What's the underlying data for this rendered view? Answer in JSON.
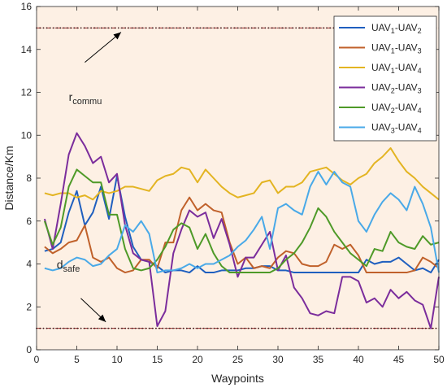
{
  "chart_data": {
    "type": "line",
    "xlabel": "Waypoints",
    "ylabel": "Distance/Km",
    "xlim": [
      0,
      50
    ],
    "ylim": [
      0,
      16
    ],
    "xticks": [
      0,
      5,
      10,
      15,
      20,
      25,
      30,
      35,
      40,
      45,
      50
    ],
    "yticks": [
      0,
      2,
      4,
      6,
      8,
      10,
      12,
      14,
      16
    ],
    "grid": false,
    "legend_position": "top-right",
    "background": "#fdf0e4",
    "x": [
      1,
      2,
      3,
      4,
      5,
      6,
      7,
      8,
      9,
      10,
      11,
      12,
      13,
      14,
      15,
      16,
      17,
      18,
      19,
      20,
      21,
      22,
      23,
      24,
      25,
      26,
      27,
      28,
      29,
      30,
      31,
      32,
      33,
      34,
      35,
      36,
      37,
      38,
      39,
      40,
      41,
      42,
      43,
      44,
      45,
      46,
      47,
      48,
      49,
      50
    ],
    "series": [
      {
        "base": "UAV",
        "a": "1",
        "b": "2",
        "color": "#1f5fbf",
        "values": [
          4.6,
          4.7,
          5.0,
          6.4,
          7.4,
          5.8,
          6.4,
          7.6,
          6.1,
          8.1,
          6.2,
          4.8,
          4.2,
          4.1,
          3.9,
          3.6,
          3.7,
          3.7,
          3.6,
          3.9,
          3.6,
          3.6,
          3.7,
          3.7,
          3.7,
          3.8,
          3.8,
          3.9,
          3.9,
          3.7,
          3.7,
          3.6,
          3.6,
          3.6,
          3.6,
          3.6,
          3.6,
          3.6,
          3.6,
          3.6,
          4.2,
          4.0,
          4.1,
          4.1,
          4.3,
          4.0,
          3.7,
          3.8,
          3.6,
          4.2
        ]
      },
      {
        "base": "UAV",
        "a": "1",
        "b": "3",
        "color": "#c0612b",
        "values": [
          4.8,
          4.5,
          4.7,
          5.0,
          5.1,
          5.8,
          4.3,
          4.1,
          4.3,
          3.8,
          3.6,
          3.7,
          4.2,
          4.2,
          3.8,
          5.0,
          5.0,
          6.5,
          7.1,
          6.5,
          6.8,
          6.5,
          6.4,
          5.0,
          4.0,
          4.3,
          3.8,
          3.9,
          3.8,
          4.3,
          4.6,
          4.5,
          4.0,
          3.9,
          3.9,
          4.1,
          4.9,
          4.7,
          4.9,
          4.4,
          3.6,
          3.6,
          3.6,
          3.6,
          3.6,
          3.6,
          3.7,
          4.3,
          4.1,
          3.8
        ]
      },
      {
        "base": "UAV",
        "a": "1",
        "b": "4",
        "color": "#e3b422",
        "values": [
          7.3,
          7.2,
          7.3,
          7.3,
          7.1,
          7.2,
          7.0,
          7.4,
          7.3,
          7.4,
          7.6,
          7.6,
          7.5,
          7.4,
          7.9,
          8.1,
          8.2,
          8.5,
          8.4,
          7.8,
          8.4,
          8.0,
          7.6,
          7.3,
          7.1,
          7.2,
          7.3,
          7.8,
          7.9,
          7.3,
          7.6,
          7.6,
          7.8,
          8.3,
          8.4,
          8.5,
          8.2,
          7.9,
          7.7,
          8.0,
          8.2,
          8.7,
          9.0,
          9.4,
          8.8,
          8.3,
          8.0,
          7.6,
          7.3,
          7.0
        ]
      },
      {
        "base": "UAV",
        "a": "2",
        "b": "3",
        "color": "#7b2d9c",
        "values": [
          6.1,
          4.7,
          6.8,
          9.1,
          10.1,
          9.5,
          8.7,
          9.0,
          7.8,
          8.2,
          5.8,
          4.5,
          4.2,
          4.1,
          1.1,
          1.8,
          4.5,
          5.6,
          6.5,
          6.2,
          6.4,
          5.2,
          6.1,
          4.9,
          3.4,
          4.3,
          4.3,
          4.9,
          5.5,
          3.7,
          4.4,
          2.9,
          2.4,
          1.7,
          1.6,
          1.8,
          1.7,
          3.4,
          3.4,
          3.2,
          2.2,
          2.4,
          2.0,
          2.8,
          2.4,
          2.7,
          2.3,
          2.1,
          1.0,
          3.4
        ]
      },
      {
        "base": "UAV",
        "a": "2",
        "b": "4",
        "color": "#4e9a28",
        "values": [
          6.0,
          4.9,
          5.7,
          7.6,
          8.4,
          8.1,
          7.8,
          7.8,
          6.3,
          6.3,
          4.7,
          3.8,
          3.7,
          3.8,
          4.2,
          4.8,
          5.6,
          5.9,
          5.7,
          4.7,
          5.4,
          4.5,
          3.9,
          3.6,
          3.6,
          3.6,
          3.6,
          3.6,
          3.6,
          3.8,
          4.2,
          4.5,
          5.0,
          5.7,
          6.6,
          6.2,
          5.5,
          5.0,
          4.5,
          4.2,
          3.9,
          4.7,
          4.6,
          5.5,
          5.0,
          4.8,
          4.7,
          5.3,
          4.9,
          5.0
        ]
      },
      {
        "base": "UAV",
        "a": "3",
        "b": "4",
        "color": "#49a9e8",
        "values": [
          3.8,
          3.7,
          3.8,
          4.1,
          4.3,
          4.2,
          3.9,
          4.0,
          4.4,
          4.7,
          5.8,
          5.5,
          6.0,
          5.4,
          3.6,
          3.7,
          3.7,
          3.8,
          4.0,
          3.8,
          4.0,
          4.0,
          4.2,
          4.4,
          4.8,
          5.1,
          5.6,
          6.2,
          4.7,
          6.6,
          6.8,
          6.5,
          6.3,
          7.6,
          8.3,
          7.7,
          8.3,
          7.8,
          7.6,
          6.0,
          5.5,
          6.3,
          6.9,
          7.3,
          7.0,
          6.5,
          7.6,
          6.8,
          5.7,
          3.6
        ]
      }
    ],
    "reference_lines": [
      {
        "y": 15,
        "color": "#a52a2a"
      },
      {
        "y": 1,
        "color": "#a52a2a"
      }
    ],
    "annotations": [
      {
        "main": "r",
        "sub": "commu",
        "text_at": [
          4.0,
          11.6
        ],
        "arrow_from": [
          6.0,
          13.4
        ],
        "arrow_to": [
          10.5,
          14.8
        ]
      },
      {
        "main": "d",
        "sub": "safe",
        "text_at": [
          2.5,
          3.8
        ],
        "arrow_from": [
          5.5,
          2.4
        ],
        "arrow_to": [
          8.6,
          1.3
        ]
      }
    ]
  }
}
